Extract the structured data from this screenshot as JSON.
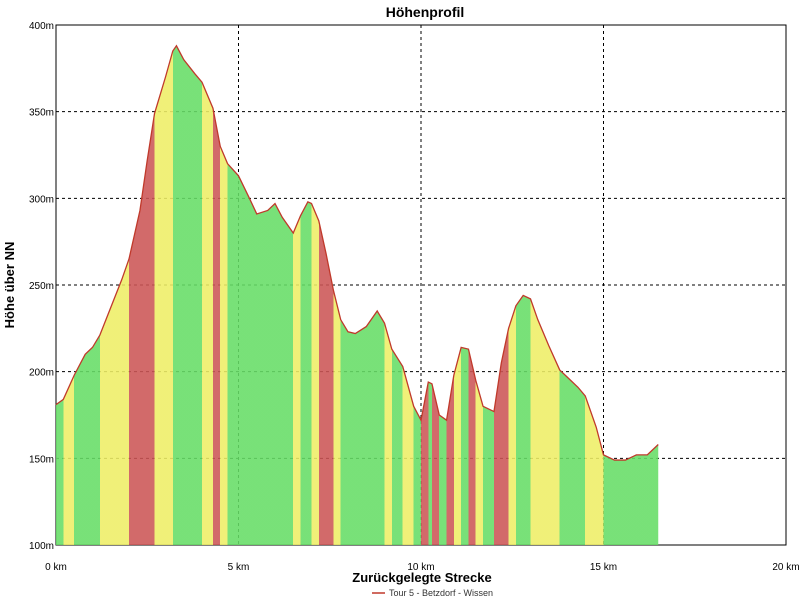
{
  "chart_data": {
    "type": "area",
    "title": "Höhenprofil",
    "xlabel": "Zurückgelegte Strecke",
    "ylabel": "Höhe über NN",
    "xlim": [
      0,
      20
    ],
    "ylim": [
      100,
      400
    ],
    "x_ticks": [
      0,
      5,
      10,
      15,
      20
    ],
    "x_tick_labels": [
      "0 km",
      "5 km",
      "10 km",
      "15 km",
      "20 km"
    ],
    "y_ticks": [
      100,
      150,
      200,
      250,
      300,
      350,
      400
    ],
    "y_tick_labels": [
      "100m",
      "150m",
      "200m",
      "250m",
      "300m",
      "350m",
      "400m"
    ],
    "grid": true,
    "legend_position": "bottom",
    "series": [
      {
        "name": "Tour 5 - Betzdorf - Wissen",
        "line_color": "#c0392b",
        "x": [
          0,
          0.2,
          0.5,
          0.8,
          1.0,
          1.2,
          1.5,
          1.8,
          2.0,
          2.3,
          2.5,
          2.7,
          3.0,
          3.2,
          3.3,
          3.5,
          3.8,
          4.0,
          4.3,
          4.5,
          4.7,
          5.0,
          5.3,
          5.5,
          5.8,
          6.0,
          6.2,
          6.5,
          6.7,
          6.9,
          7.0,
          7.2,
          7.4,
          7.6,
          7.8,
          8.0,
          8.2,
          8.5,
          8.8,
          9.0,
          9.2,
          9.5,
          9.8,
          10.0,
          10.2,
          10.3,
          10.5,
          10.7,
          10.9,
          11.1,
          11.3,
          11.5,
          11.7,
          12.0,
          12.2,
          12.4,
          12.6,
          12.8,
          13.0,
          13.2,
          13.5,
          13.8,
          14.0,
          14.3,
          14.5,
          14.8,
          15.0,
          15.3,
          15.6,
          15.9,
          16.2,
          16.5
        ],
        "y": [
          181,
          184,
          198,
          210,
          214,
          221,
          237,
          253,
          265,
          293,
          322,
          349,
          370,
          385,
          388,
          380,
          372,
          367,
          352,
          330,
          320,
          313,
          300,
          291,
          293,
          297,
          289,
          280,
          290,
          298,
          297,
          287,
          268,
          247,
          230,
          223,
          222,
          226,
          235,
          228,
          213,
          203,
          180,
          172,
          194,
          193,
          175,
          172,
          198,
          214,
          213,
          195,
          180,
          177,
          205,
          225,
          238,
          244,
          242,
          230,
          215,
          201,
          197,
          191,
          186,
          168,
          152,
          149,
          149,
          152,
          152,
          158
        ]
      }
    ],
    "heatmap_colors": {
      "flat": "#66dd66",
      "moderate": "#eeee66",
      "steep": "#cc5555"
    }
  }
}
